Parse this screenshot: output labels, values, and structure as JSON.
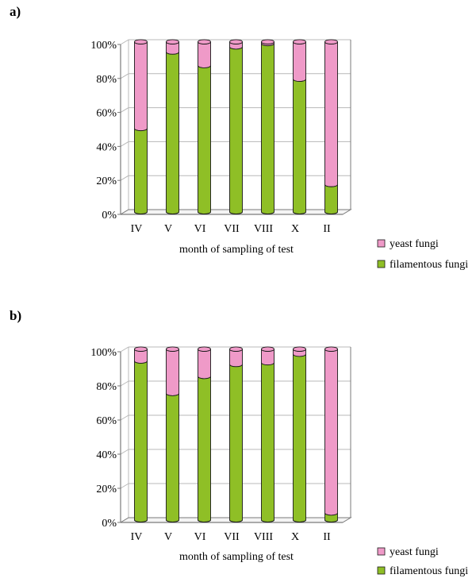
{
  "colors": {
    "filamentous": "#8fbf26",
    "yeast": "#ef9ac8",
    "grid": "#b8b8b8",
    "axis": "#7a7a7a",
    "outline": "#1a1a1a"
  },
  "chart_data": [
    {
      "panel": "a)",
      "type": "bar",
      "stacked": true,
      "percent_axis": true,
      "categories": [
        "IV",
        "V",
        "VI",
        "VII",
        "VIII",
        "X",
        "II"
      ],
      "series": [
        {
          "name": "filamentous fungi",
          "values": [
            49,
            94,
            86,
            97,
            99,
            78,
            16
          ]
        },
        {
          "name": "yeast fungi",
          "values": [
            51,
            6,
            14,
            3,
            1,
            22,
            84
          ]
        }
      ],
      "xlabel": "month of sampling of test",
      "ylabel": "",
      "ylim": [
        0,
        100
      ],
      "yticks": [
        "0%",
        "20%",
        "40%",
        "60%",
        "80%",
        "100%"
      ],
      "grid": true,
      "legend": [
        "yeast fungi",
        "filamentous fungi"
      ],
      "legend_position": "bottom-right"
    },
    {
      "panel": "b)",
      "type": "bar",
      "stacked": true,
      "percent_axis": true,
      "categories": [
        "IV",
        "V",
        "VI",
        "VII",
        "VIII",
        "X",
        "II"
      ],
      "series": [
        {
          "name": "filamentous fungi",
          "values": [
            93,
            74,
            84,
            91,
            92,
            97,
            4
          ]
        },
        {
          "name": "yeast fungi",
          "values": [
            7,
            26,
            16,
            9,
            8,
            3,
            96
          ]
        }
      ],
      "xlabel": "month of sampling of test",
      "ylabel": "",
      "ylim": [
        0,
        100
      ],
      "yticks": [
        "0%",
        "20%",
        "40%",
        "60%",
        "80%",
        "100%"
      ],
      "grid": true,
      "legend": [
        "yeast fungi",
        "filamentous fungi"
      ],
      "legend_position": "bottom-right"
    }
  ]
}
